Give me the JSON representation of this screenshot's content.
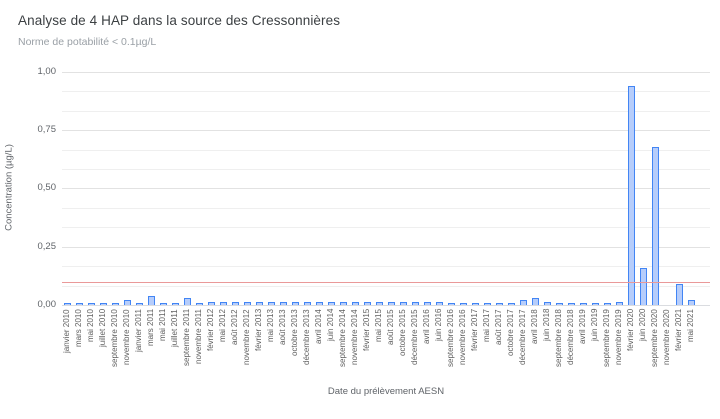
{
  "header": {
    "title": "Analyse de 4 HAP dans la source des Cressonnières",
    "subtitle": "Norme de potabilité  < 0.1µg/L"
  },
  "axes": {
    "x_title": "Date du prélèvement AESN",
    "y_title": "Concentration (µg/L)"
  },
  "chart_data": {
    "type": "bar",
    "title": "Analyse de 4 HAP dans la source des Cressonnières",
    "subtitle": "Norme de potabilité  < 0.1µg/L",
    "xlabel": "Date du prélèvement AESN",
    "ylabel": "Concentration (µg/L)",
    "ylim": [
      0,
      1
    ],
    "grid": "major 0.25 with minor lines every 1/12",
    "legend": "none",
    "bar_fill": "#b6cdfb",
    "bar_stroke": "#4285f4",
    "yticks": [
      {
        "label": "0,00",
        "value": 0
      },
      {
        "label": "0,25",
        "value": 0.25
      },
      {
        "label": "0,50",
        "value": 0.5
      },
      {
        "label": "0,75",
        "value": 0.75
      },
      {
        "label": "1,00",
        "value": 1
      }
    ],
    "reference_line": {
      "name": "norme de potabilité",
      "value": 0.1,
      "color": "#ea9999"
    },
    "categories": [
      "janvier 2010",
      "mars 2010",
      "mai 2010",
      "juillet 2010",
      "septembre 2010",
      "novembre 2010",
      "janvier 2011",
      "mars 2011",
      "mai 2011",
      "juillet 2011",
      "septembre 2011",
      "novembre 2011",
      "février 2012",
      "mai 2012",
      "août 2012",
      "novembre 2012",
      "février 2013",
      "mai 2013",
      "août 2013",
      "octobre 2013",
      "décembre 2013",
      "avril 2014",
      "juin 2014",
      "septembre 2014",
      "novembre 2014",
      "février 2015",
      "mai 2015",
      "août 2015",
      "octobre 2015",
      "décembre 2015",
      "avril 2016",
      "juin 2016",
      "septembre 2016",
      "novembre 2016",
      "février 2017",
      "mai 2017",
      "août 2017",
      "octobre 2017",
      "décembre 2017",
      "avril 2018",
      "juin 2018",
      "septembre 2018",
      "décembre 2018",
      "avril 2019",
      "juin 2019",
      "septembre 2019",
      "novembre 2019",
      "février 2020",
      "juin 2020",
      "septembre 2020",
      "novembre 2020",
      "février 2021",
      "mai 2021"
    ],
    "values": [
      0.008,
      0.008,
      0.008,
      0.008,
      0.008,
      0.02,
      0.008,
      0.04,
      0.008,
      0.008,
      0.03,
      0.008,
      0.013,
      0.013,
      0.013,
      0.013,
      0.013,
      0.013,
      0.013,
      0.013,
      0.013,
      0.013,
      0.013,
      0.013,
      0.013,
      0.013,
      0.013,
      0.013,
      0.013,
      0.013,
      0.013,
      0.013,
      0.008,
      0.006,
      0.004,
      0.01,
      0.005,
      0.005,
      0.02,
      0.03,
      0.012,
      0.008,
      0.005,
      0.005,
      0.005,
      0.005,
      0.015,
      0.94,
      0.16,
      0.68,
      0,
      0.09,
      0.02
    ]
  }
}
